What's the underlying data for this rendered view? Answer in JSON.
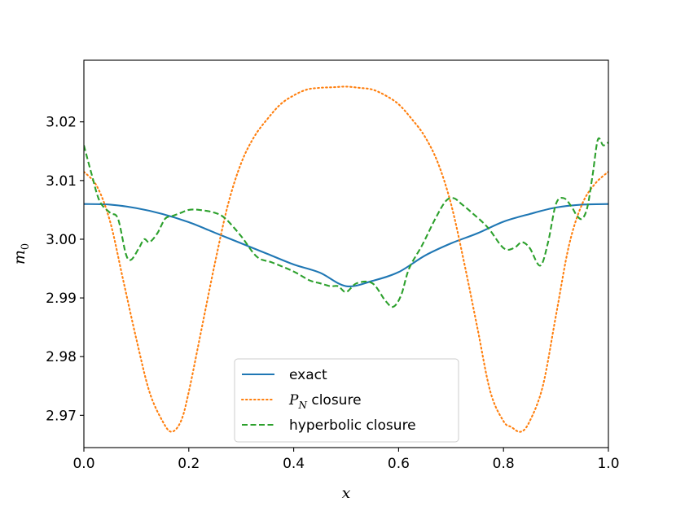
{
  "chart_data": {
    "type": "line",
    "title": "",
    "xlabel": "x",
    "ylabel": "m",
    "ylabel_subscript": "0",
    "xlim": [
      0.0,
      1.0
    ],
    "ylim": [
      2.9645,
      3.0305
    ],
    "grid": false,
    "legend_position": "lower-center",
    "x_ticks": [
      0.0,
      0.2,
      0.4,
      0.6,
      0.8,
      1.0
    ],
    "x_tick_labels": [
      "0.0",
      "0.2",
      "0.4",
      "0.6",
      "0.8",
      "1.0"
    ],
    "y_ticks": [
      2.97,
      2.98,
      2.99,
      3.0,
      3.01,
      3.02
    ],
    "y_tick_labels": [
      "2.97",
      "2.98",
      "2.99",
      "3.00",
      "3.01",
      "3.02"
    ],
    "series": [
      {
        "name": "exact",
        "label_main": "exact",
        "label_sub": "",
        "label_rest": "",
        "color": "#1f77b4",
        "style": "solid",
        "x": [
          0.0,
          0.05,
          0.1,
          0.15,
          0.2,
          0.25,
          0.3,
          0.35,
          0.4,
          0.45,
          0.5,
          0.55,
          0.6,
          0.65,
          0.7,
          0.75,
          0.8,
          0.85,
          0.9,
          0.95,
          1.0
        ],
        "y": [
          3.006,
          3.0059,
          3.0053,
          3.0043,
          3.0029,
          3.0011,
          2.9993,
          2.9975,
          2.9957,
          2.9943,
          2.992,
          2.9929,
          2.9944,
          2.9972,
          2.9993,
          3.001,
          3.003,
          3.0043,
          3.0054,
          3.0059,
          3.006
        ]
      },
      {
        "name": "P_N closure",
        "label_main": "P",
        "label_sub": "N",
        "label_rest": " closure",
        "color": "#ff7f0e",
        "style": "dotted",
        "x": [
          0.0,
          0.025,
          0.05,
          0.075,
          0.1,
          0.125,
          0.15,
          0.167,
          0.185,
          0.2,
          0.225,
          0.25,
          0.275,
          0.3,
          0.325,
          0.35,
          0.375,
          0.4,
          0.425,
          0.45,
          0.475,
          0.5,
          0.525,
          0.55,
          0.575,
          0.6,
          0.625,
          0.65,
          0.675,
          0.7,
          0.725,
          0.75,
          0.775,
          0.8,
          0.815,
          0.833,
          0.85,
          0.875,
          0.9,
          0.925,
          0.95,
          0.975,
          1.0
        ],
        "y": [
          3.0115,
          3.009,
          3.003,
          2.993,
          2.983,
          2.974,
          2.969,
          2.9672,
          2.969,
          2.974,
          2.985,
          2.996,
          3.006,
          3.013,
          3.0175,
          3.0205,
          3.023,
          3.0245,
          3.0255,
          3.0258,
          3.0259,
          3.026,
          3.0258,
          3.0255,
          3.0245,
          3.023,
          3.0205,
          3.0175,
          3.013,
          3.006,
          2.996,
          2.985,
          2.974,
          2.969,
          2.968,
          2.9672,
          2.969,
          2.975,
          2.987,
          2.999,
          3.006,
          3.0095,
          3.0115
        ]
      },
      {
        "name": "hyperbolic closure",
        "label_main": "hyperbolic closure",
        "label_sub": "",
        "label_rest": "",
        "color": "#2ca02c",
        "style": "dashed",
        "x": [
          0.0,
          0.015,
          0.03,
          0.05,
          0.065,
          0.08,
          0.09,
          0.105,
          0.115,
          0.125,
          0.14,
          0.155,
          0.17,
          0.185,
          0.2,
          0.22,
          0.25,
          0.27,
          0.3,
          0.33,
          0.36,
          0.4,
          0.43,
          0.45,
          0.47,
          0.485,
          0.5,
          0.52,
          0.55,
          0.575,
          0.59,
          0.605,
          0.62,
          0.645,
          0.67,
          0.69,
          0.705,
          0.72,
          0.74,
          0.77,
          0.8,
          0.82,
          0.835,
          0.85,
          0.87,
          0.885,
          0.9,
          0.915,
          0.93,
          0.94,
          0.95,
          0.96,
          0.97,
          0.98,
          0.99,
          1.0
        ],
        "y": [
          3.016,
          3.011,
          3.0065,
          3.0045,
          3.0035,
          2.9975,
          2.9965,
          2.9985,
          3.0,
          2.9995,
          3.001,
          3.0035,
          3.004,
          3.0045,
          3.005,
          3.005,
          3.0045,
          3.0035,
          3.0005,
          2.997,
          2.996,
          2.9945,
          2.993,
          2.9925,
          2.992,
          2.992,
          2.991,
          2.9925,
          2.9925,
          2.9895,
          2.9885,
          2.9905,
          2.995,
          2.999,
          3.0035,
          3.0065,
          3.007,
          3.006,
          3.0045,
          3.002,
          2.9985,
          2.9985,
          2.9995,
          2.9985,
          2.9955,
          2.9995,
          3.006,
          3.007,
          3.0055,
          3.004,
          3.0035,
          3.0055,
          3.011,
          3.017,
          3.016,
          3.0165
        ]
      }
    ]
  }
}
